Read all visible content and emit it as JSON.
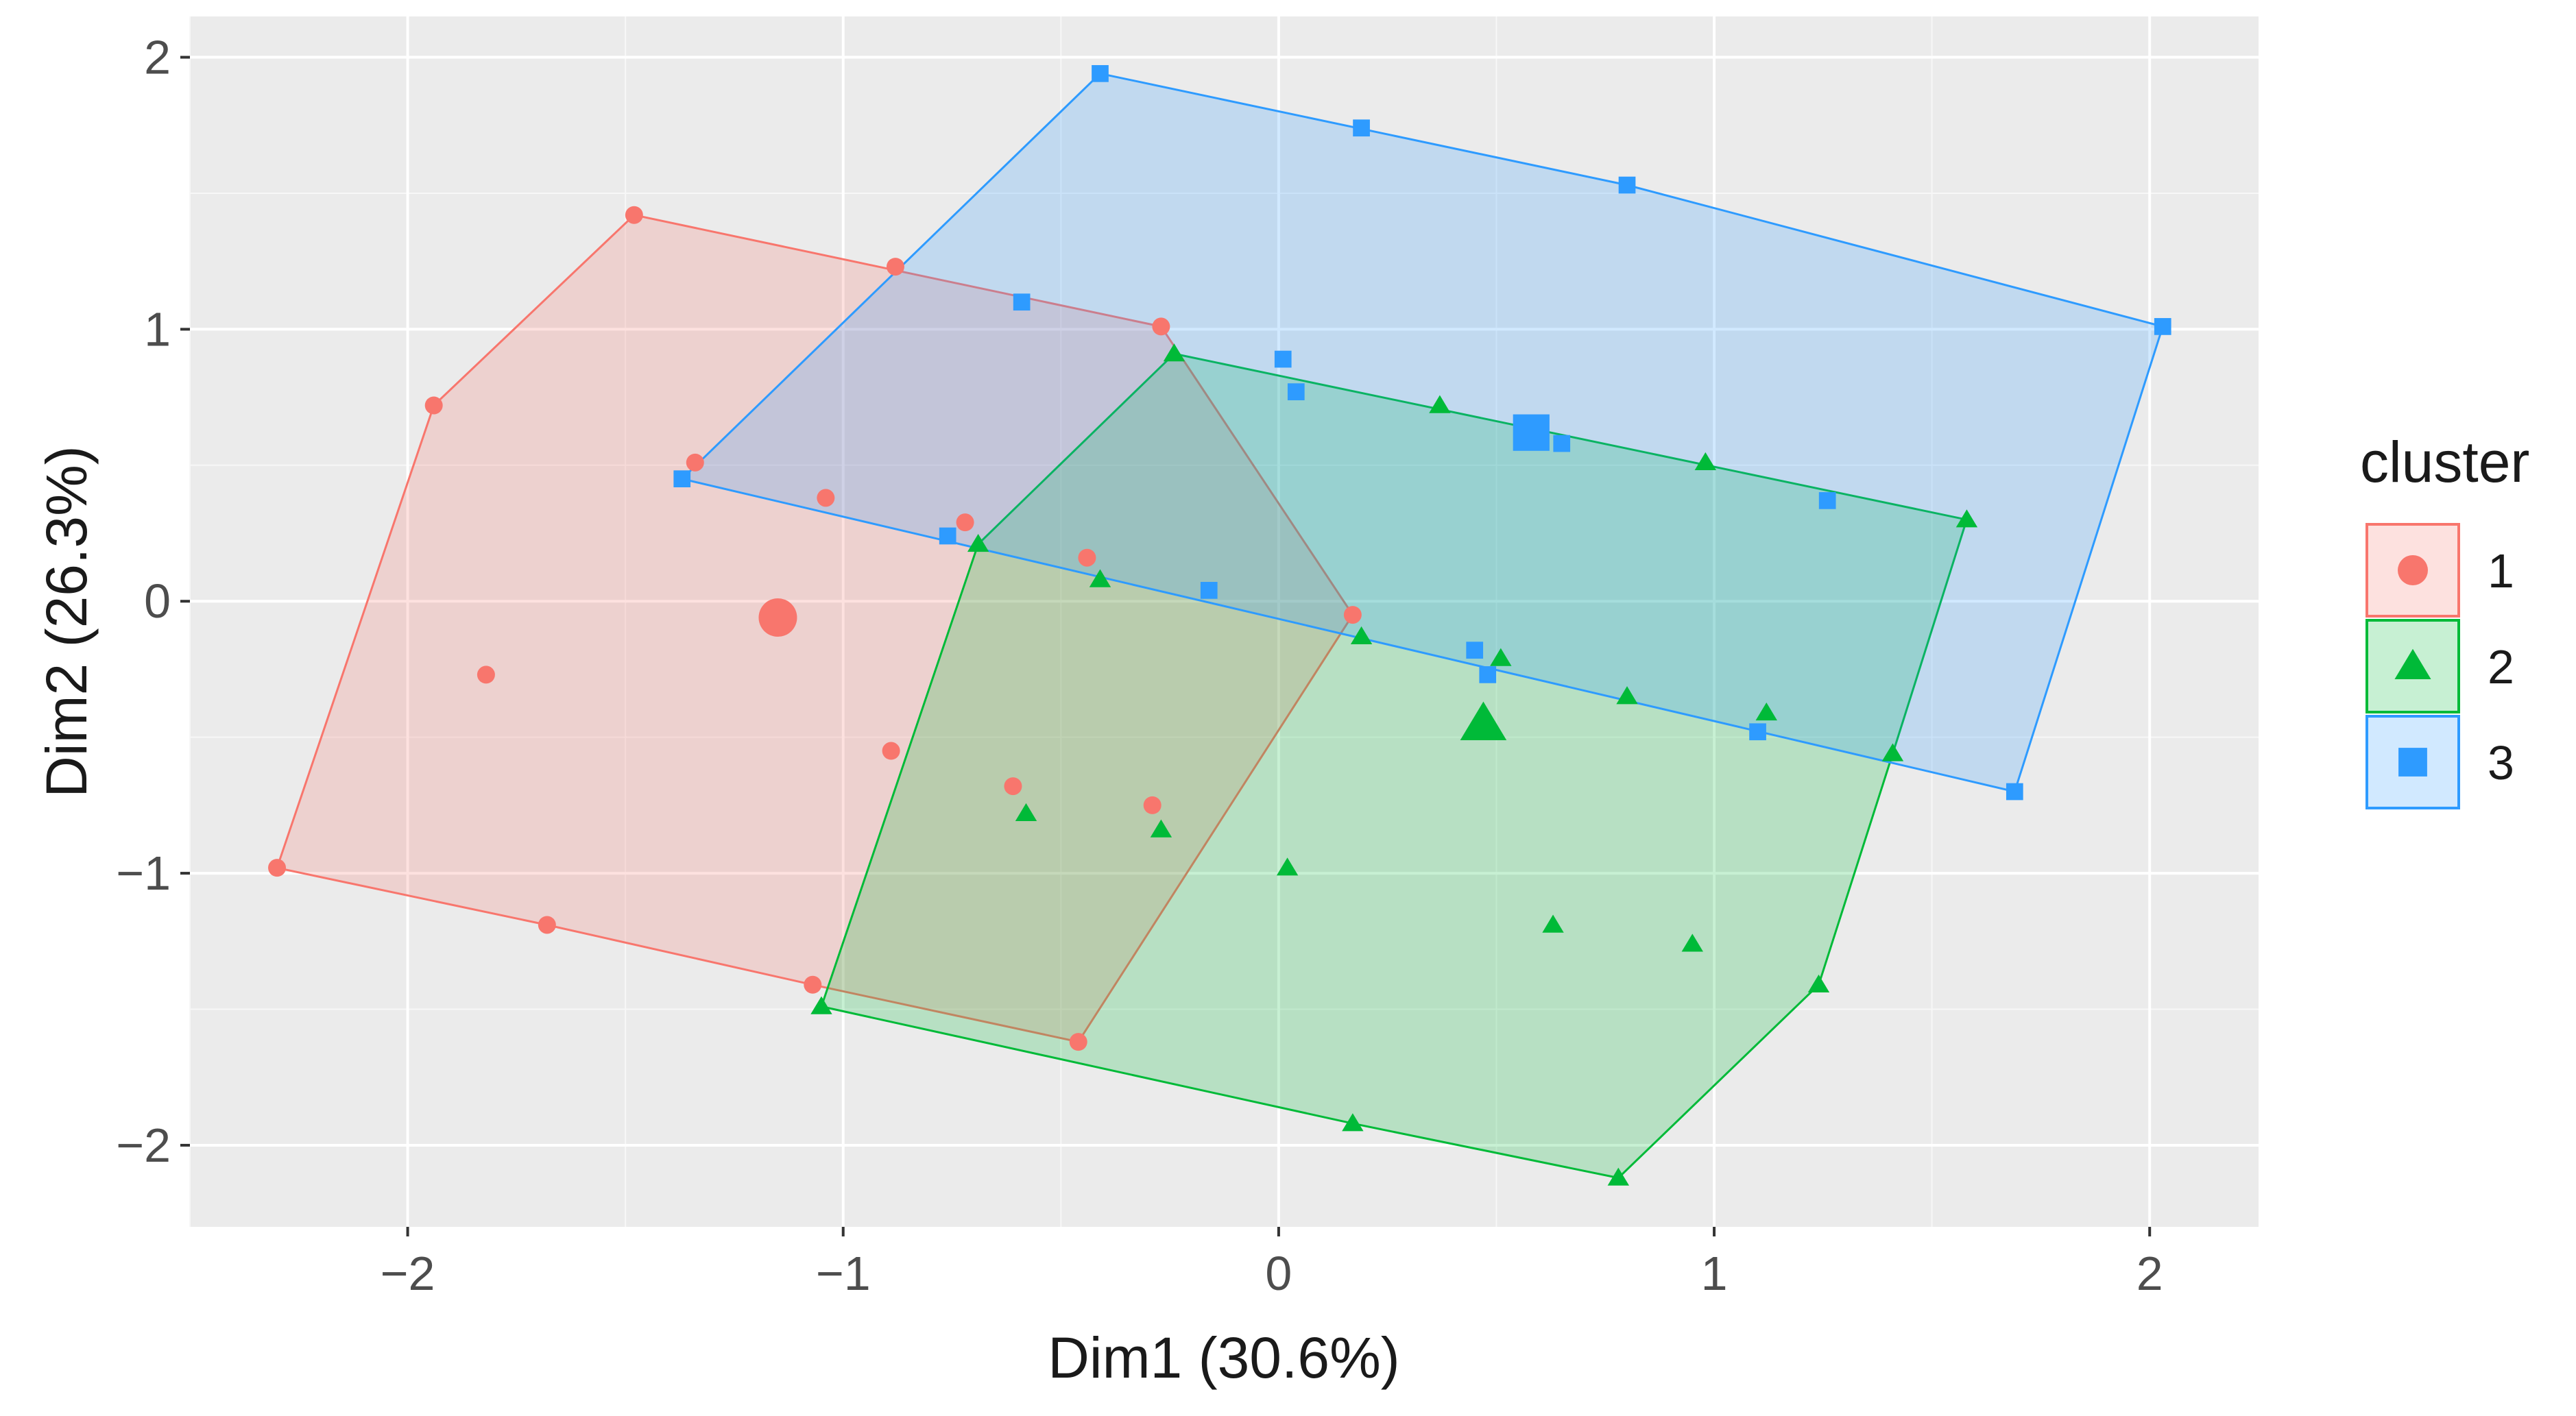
{
  "chart_data": {
    "type": "scatter",
    "title": "",
    "xlabel": "Dim1 (30.6%)",
    "ylabel": "Dim2 (26.3%)",
    "xlim": [
      -2.5,
      2.25
    ],
    "ylim": [
      -2.3,
      2.15
    ],
    "x_ticks": [
      -2,
      -1,
      0,
      1,
      2
    ],
    "x_tick_labels": [
      "−2",
      "−1",
      "0",
      "1",
      "2"
    ],
    "y_ticks": [
      -2,
      -1,
      0,
      1,
      2
    ],
    "y_tick_labels": [
      "−2",
      "−1",
      "0",
      "1",
      "2"
    ],
    "grid": true,
    "legend": {
      "title": "cluster",
      "position": "right",
      "entries": [
        {
          "label": "1",
          "shape": "circle",
          "color": "#F8766D"
        },
        {
          "label": "2",
          "shape": "triangle",
          "color": "#00BA38"
        },
        {
          "label": "3",
          "shape": "square",
          "color": "#619CFF"
        }
      ]
    },
    "colors": {
      "panel_background": "#EBEBEB",
      "grid_major": "#FFFFFF",
      "axis_text": "#4D4D4D",
      "cluster_1": "#F8766D",
      "cluster_2": "#00BA38",
      "cluster_3": "#2E9BFF"
    },
    "series": [
      {
        "name": "1",
        "shape": "circle",
        "points": [
          [
            -1.48,
            1.42
          ],
          [
            -0.88,
            1.23
          ],
          [
            -0.27,
            1.01
          ],
          [
            -1.94,
            0.72
          ],
          [
            -1.34,
            0.51
          ],
          [
            -1.04,
            0.38
          ],
          [
            -0.72,
            0.29
          ],
          [
            -0.44,
            0.16
          ],
          [
            0.17,
            -0.05
          ],
          [
            -1.82,
            -0.27
          ],
          [
            -0.89,
            -0.55
          ],
          [
            -0.61,
            -0.68
          ],
          [
            -0.29,
            -0.75
          ],
          [
            -2.3,
            -0.98
          ],
          [
            -1.68,
            -1.19
          ],
          [
            -1.07,
            -1.41
          ],
          [
            -0.46,
            -1.62
          ]
        ],
        "centroid": [
          -1.15,
          -0.06
        ],
        "hull": [
          [
            -1.48,
            1.42
          ],
          [
            -0.27,
            1.01
          ],
          [
            0.17,
            -0.05
          ],
          [
            -0.46,
            -1.62
          ],
          [
            -1.07,
            -1.41
          ],
          [
            -1.68,
            -1.19
          ],
          [
            -2.3,
            -0.98
          ],
          [
            -1.94,
            0.72
          ]
        ]
      },
      {
        "name": "2",
        "shape": "triangle",
        "points": [
          [
            -0.24,
            0.91
          ],
          [
            0.37,
            0.72
          ],
          [
            0.98,
            0.51
          ],
          [
            1.58,
            0.3
          ],
          [
            -0.69,
            0.21
          ],
          [
            -0.41,
            0.08
          ],
          [
            0.19,
            -0.13
          ],
          [
            0.51,
            -0.21
          ],
          [
            0.8,
            -0.35
          ],
          [
            1.12,
            -0.41
          ],
          [
            1.41,
            -0.56
          ],
          [
            -0.58,
            -0.78
          ],
          [
            -0.27,
            -0.84
          ],
          [
            0.02,
            -0.98
          ],
          [
            0.63,
            -1.19
          ],
          [
            0.95,
            -1.26
          ],
          [
            1.24,
            -1.41
          ],
          [
            -1.05,
            -1.49
          ],
          [
            0.17,
            -1.92
          ],
          [
            0.78,
            -2.12
          ]
        ],
        "centroid": [
          0.47,
          -0.45
        ],
        "hull": [
          [
            -0.24,
            0.91
          ],
          [
            1.58,
            0.3
          ],
          [
            1.41,
            -0.56
          ],
          [
            1.24,
            -1.41
          ],
          [
            0.78,
            -2.12
          ],
          [
            0.17,
            -1.92
          ],
          [
            -1.05,
            -1.49
          ],
          [
            -0.69,
            0.21
          ]
        ]
      },
      {
        "name": "3",
        "shape": "square",
        "points": [
          [
            -0.41,
            1.94
          ],
          [
            0.19,
            1.74
          ],
          [
            0.8,
            1.53
          ],
          [
            2.03,
            1.01
          ],
          [
            -0.59,
            1.1
          ],
          [
            0.01,
            0.89
          ],
          [
            0.04,
            0.77
          ],
          [
            0.65,
            0.58
          ],
          [
            1.26,
            0.37
          ],
          [
            -1.37,
            0.45
          ],
          [
            -0.76,
            0.24
          ],
          [
            -0.16,
            0.04
          ],
          [
            0.45,
            -0.18
          ],
          [
            0.48,
            -0.27
          ],
          [
            1.1,
            -0.48
          ],
          [
            1.69,
            -0.7
          ]
        ],
        "centroid": [
          0.58,
          0.62
        ],
        "hull": [
          [
            -0.41,
            1.94
          ],
          [
            0.8,
            1.53
          ],
          [
            2.03,
            1.01
          ],
          [
            1.69,
            -0.7
          ],
          [
            -1.37,
            0.45
          ]
        ]
      }
    ]
  }
}
